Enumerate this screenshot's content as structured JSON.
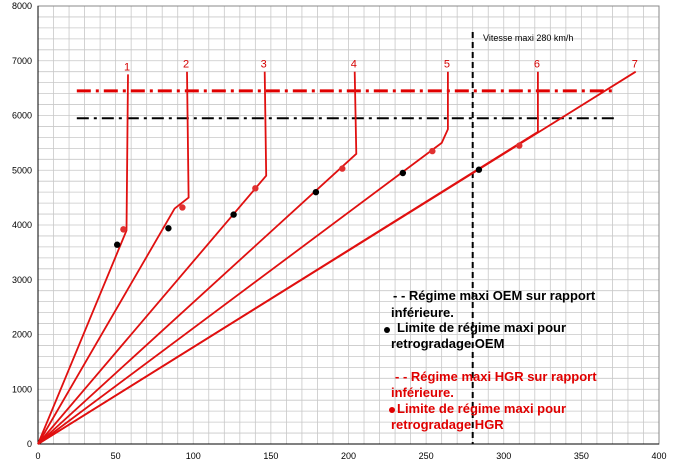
{
  "chart_data": {
    "type": "line",
    "xlim": [
      0,
      400
    ],
    "ylim": [
      0,
      8000
    ],
    "x_ticks": [
      0,
      50,
      100,
      150,
      200,
      250,
      300,
      350,
      400
    ],
    "y_ticks": [
      0,
      1000,
      2000,
      3000,
      4000,
      5000,
      6000,
      7000,
      8000
    ],
    "grid": true,
    "series": [
      {
        "name": "1",
        "points": [
          [
            0,
            0
          ],
          [
            57,
            3900
          ],
          [
            58,
            6750
          ]
        ]
      },
      {
        "name": "2",
        "points": [
          [
            0,
            0
          ],
          [
            88,
            4300
          ],
          [
            97,
            4500
          ],
          [
            96,
            6800
          ]
        ]
      },
      {
        "name": "3",
        "points": [
          [
            0,
            0
          ],
          [
            147,
            4900
          ],
          [
            146,
            6800
          ]
        ]
      },
      {
        "name": "4",
        "points": [
          [
            0,
            0
          ],
          [
            205,
            5300
          ],
          [
            204,
            6800
          ]
        ]
      },
      {
        "name": "5",
        "points": [
          [
            0,
            0
          ],
          [
            260,
            5500
          ],
          [
            264,
            5750
          ],
          [
            264,
            6800
          ]
        ]
      },
      {
        "name": "6",
        "points": [
          [
            0,
            0
          ],
          [
            322,
            5700
          ],
          [
            322,
            6800
          ]
        ]
      },
      {
        "name": "7",
        "points": [
          [
            0,
            0
          ],
          [
            385,
            6800
          ]
        ]
      }
    ],
    "reference_lines": {
      "red_dashdot_y": 6450,
      "black_dashdot_y": 5950,
      "vertical_x": 280,
      "vertical_label": "Vitesse maxi 280 km/h"
    },
    "black_dots": [
      [
        51,
        3640
      ],
      [
        84,
        3940
      ],
      [
        126,
        4190
      ],
      [
        179,
        4600
      ],
      [
        235,
        4950
      ],
      [
        284,
        5010
      ]
    ],
    "red_dots": [
      [
        55,
        3920
      ],
      [
        93,
        4320
      ],
      [
        140,
        4670
      ],
      [
        196,
        5030
      ],
      [
        254,
        5350
      ],
      [
        310,
        5450
      ]
    ],
    "legend": {
      "line1a": "- - Régime maxi OEM sur rapport",
      "line1b": "inférieure.",
      "line2a": "Limite de régime maxi pour",
      "line2b": "retrogradage OEM",
      "line3a": "- - Régime maxi HGR sur rapport",
      "line3b": "inférieure.",
      "line4a": "Limite de régime maxi pour",
      "line4b": "retrogradage HGR"
    },
    "colors": {
      "series": "#e01010",
      "black_dot": "#000000",
      "red_dot": "#e03030",
      "grid": "#c8c8c8",
      "legend_black": "#000000",
      "legend_red": "#e00000"
    }
  }
}
